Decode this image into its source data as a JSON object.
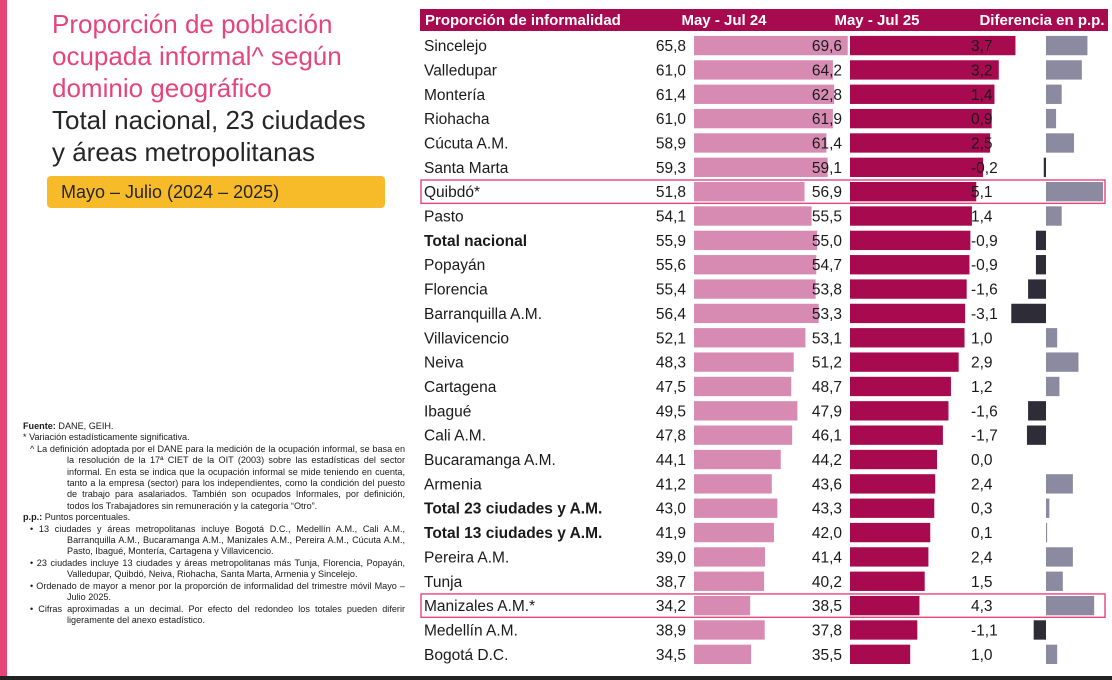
{
  "title": {
    "line1": "Proporción de población",
    "line2": "ocupada informal^ según",
    "line3": "dominio geográfico",
    "line4": "Total nacional, 23 ciudades",
    "line5": "y áreas metropolitanas"
  },
  "period": "Mayo – Julio (2024 – 2025)",
  "notes": {
    "source_label": "Fuente:",
    "source_text": " DANE, GEIH.",
    "n1": "* Variación estadísticamente significativa.",
    "n2": "^ La definición adoptada por el DANE para la medición de la ocupación informal, se basa en la resolución de la 17ª CIET de la OIT (2003) sobre las estadísticas del sector informal. En esta se indica que la ocupación informal se mide teniendo en cuenta, tanto a la empresa (sector) para los independientes, como la condición del puesto de trabajo para asalariados. También son ocupados Informales, por definición, todos los Trabajadores sin remuneración y la categoría “Otro”.",
    "pp_label": "p.p.:",
    "pp_text": " Puntos porcentuales.",
    "n3": "• 13 ciudades y áreas metropolitanas incluye Bogotá D.C., Medellín A.M., Cali A.M., Barranquilla A.M., Bucaramanga A.M., Manizales A.M., Pereira A.M., Cúcuta A.M., Pasto, Ibagué, Montería, Cartagena y Villavicencio.",
    "n4": "• 23 ciudades incluye 13 ciudades y áreas metropolitanas más Tunja, Florencia, Popayán, Valledupar, Quibdó, Neiva, Riohacha, Santa Marta, Armenia y Sincelejo.",
    "n5": "• Ordenado de mayor a menor por la proporción de informalidad del trimestre móvil Mayo – Julio 2025.",
    "n6": "• Cifras aproximadas a un decimal. Por efecto del redondeo los totales pueden diferir ligeramente del anexo estadístico."
  },
  "colors": {
    "pink_title": "#e6457a",
    "header_bg": "#a80a4f",
    "bar_2024": "#d88bb2",
    "bar_2025": "#a80a4f",
    "diff_pos": "#8c8aa0",
    "diff_neg": "#2e2c36",
    "highlight": "#e6457a",
    "badge": "#f7bb2a",
    "left_bar": "#e6457a"
  },
  "chart_data": {
    "type": "table",
    "columns": [
      "Proporción de informalidad",
      "May - Jul 24",
      "May - Jul 25",
      "Diferencia en p.p."
    ],
    "rows": [
      {
        "name": "Sincelejo",
        "y2024": "65,8",
        "y2025": "69,6",
        "diff": "3,7",
        "v2024": 65.8,
        "v2025": 69.6,
        "vdiff": 3.7,
        "bold": false,
        "highlight": false
      },
      {
        "name": "Valledupar",
        "y2024": "61,0",
        "y2025": "64,2",
        "diff": "3,2",
        "v2024": 61.0,
        "v2025": 64.2,
        "vdiff": 3.2,
        "bold": false,
        "highlight": false
      },
      {
        "name": "Montería",
        "y2024": "61,4",
        "y2025": "62,8",
        "diff": "1,4",
        "v2024": 61.4,
        "v2025": 62.8,
        "vdiff": 1.4,
        "bold": false,
        "highlight": false
      },
      {
        "name": "Riohacha",
        "y2024": "61,0",
        "y2025": "61,9",
        "diff": "0,9",
        "v2024": 61.0,
        "v2025": 61.9,
        "vdiff": 0.9,
        "bold": false,
        "highlight": false
      },
      {
        "name": "Cúcuta A.M.",
        "y2024": "58,9",
        "y2025": "61,4",
        "diff": "2,5",
        "v2024": 58.9,
        "v2025": 61.4,
        "vdiff": 2.5,
        "bold": false,
        "highlight": false
      },
      {
        "name": "Santa Marta",
        "y2024": "59,3",
        "y2025": "59,1",
        "diff": "-0,2",
        "v2024": 59.3,
        "v2025": 59.1,
        "vdiff": -0.2,
        "bold": false,
        "highlight": false
      },
      {
        "name": "Quibdó*",
        "y2024": "51,8",
        "y2025": "56,9",
        "diff": "5,1",
        "v2024": 51.8,
        "v2025": 56.9,
        "vdiff": 5.1,
        "bold": false,
        "highlight": true
      },
      {
        "name": "Pasto",
        "y2024": "54,1",
        "y2025": "55,5",
        "diff": "1,4",
        "v2024": 54.1,
        "v2025": 55.5,
        "vdiff": 1.4,
        "bold": false,
        "highlight": false
      },
      {
        "name": "Total nacional",
        "y2024": "55,9",
        "y2025": "55,0",
        "diff": "-0,9",
        "v2024": 55.9,
        "v2025": 55.0,
        "vdiff": -0.9,
        "bold": true,
        "highlight": false
      },
      {
        "name": "Popayán",
        "y2024": "55,6",
        "y2025": "54,7",
        "diff": "-0,9",
        "v2024": 55.6,
        "v2025": 54.7,
        "vdiff": -0.9,
        "bold": false,
        "highlight": false
      },
      {
        "name": "Florencia",
        "y2024": "55,4",
        "y2025": "53,8",
        "diff": "-1,6",
        "v2024": 55.4,
        "v2025": 53.8,
        "vdiff": -1.6,
        "bold": false,
        "highlight": false
      },
      {
        "name": "Barranquilla A.M.",
        "y2024": "56,4",
        "y2025": "53,3",
        "diff": "-3,1",
        "v2024": 56.4,
        "v2025": 53.3,
        "vdiff": -3.1,
        "bold": false,
        "highlight": false
      },
      {
        "name": "Villavicencio",
        "y2024": "52,1",
        "y2025": "53,1",
        "diff": "1,0",
        "v2024": 52.1,
        "v2025": 53.1,
        "vdiff": 1.0,
        "bold": false,
        "highlight": false
      },
      {
        "name": "Neiva",
        "y2024": "48,3",
        "y2025": "51,2",
        "diff": "2,9",
        "v2024": 48.3,
        "v2025": 51.2,
        "vdiff": 2.9,
        "bold": false,
        "highlight": false
      },
      {
        "name": "Cartagena",
        "y2024": "47,5",
        "y2025": "48,7",
        "diff": "1,2",
        "v2024": 47.5,
        "v2025": 48.7,
        "vdiff": 1.2,
        "bold": false,
        "highlight": false
      },
      {
        "name": "Ibagué",
        "y2024": "49,5",
        "y2025": "47,9",
        "diff": "-1,6",
        "v2024": 49.5,
        "v2025": 47.9,
        "vdiff": -1.6,
        "bold": false,
        "highlight": false
      },
      {
        "name": "Cali A.M.",
        "y2024": "47,8",
        "y2025": "46,1",
        "diff": "-1,7",
        "v2024": 47.8,
        "v2025": 46.1,
        "vdiff": -1.7,
        "bold": false,
        "highlight": false
      },
      {
        "name": "Bucaramanga A.M.",
        "y2024": "44,1",
        "y2025": "44,2",
        "diff": "0,0",
        "v2024": 44.1,
        "v2025": 44.2,
        "vdiff": 0.0,
        "bold": false,
        "highlight": false
      },
      {
        "name": "Armenia",
        "y2024": "41,2",
        "y2025": "43,6",
        "diff": "2,4",
        "v2024": 41.2,
        "v2025": 43.6,
        "vdiff": 2.4,
        "bold": false,
        "highlight": false
      },
      {
        "name": "Total 23 ciudades y A.M.",
        "y2024": "43,0",
        "y2025": "43,3",
        "diff": "0,3",
        "v2024": 43.0,
        "v2025": 43.3,
        "vdiff": 0.3,
        "bold": true,
        "highlight": false
      },
      {
        "name": "Total 13 ciudades y A.M.",
        "y2024": "41,9",
        "y2025": "42,0",
        "diff": "0,1",
        "v2024": 41.9,
        "v2025": 42.0,
        "vdiff": 0.1,
        "bold": true,
        "highlight": false
      },
      {
        "name": "Pereira A.M.",
        "y2024": "39,0",
        "y2025": "41,4",
        "diff": "2,4",
        "v2024": 39.0,
        "v2025": 41.4,
        "vdiff": 2.4,
        "bold": false,
        "highlight": false
      },
      {
        "name": "Tunja",
        "y2024": "38,7",
        "y2025": "40,2",
        "diff": "1,5",
        "v2024": 38.7,
        "v2025": 40.2,
        "vdiff": 1.5,
        "bold": false,
        "highlight": false
      },
      {
        "name": "Manizales A.M.*",
        "y2024": "34,2",
        "y2025": "38,5",
        "diff": "4,3",
        "v2024": 34.2,
        "v2025": 38.5,
        "vdiff": 4.3,
        "bold": false,
        "highlight": true
      },
      {
        "name": "Medellín A.M.",
        "y2024": "38,9",
        "y2025": "37,8",
        "diff": "-1,1",
        "v2024": 38.9,
        "v2025": 37.8,
        "vdiff": -1.1,
        "bold": false,
        "highlight": false
      },
      {
        "name": "Bogotá D.C.",
        "y2024": "34,5",
        "y2025": "35,5",
        "diff": "1,0",
        "v2024": 34.5,
        "v2025": 35.5,
        "vdiff": 1.0,
        "bold": false,
        "highlight": false
      }
    ]
  }
}
